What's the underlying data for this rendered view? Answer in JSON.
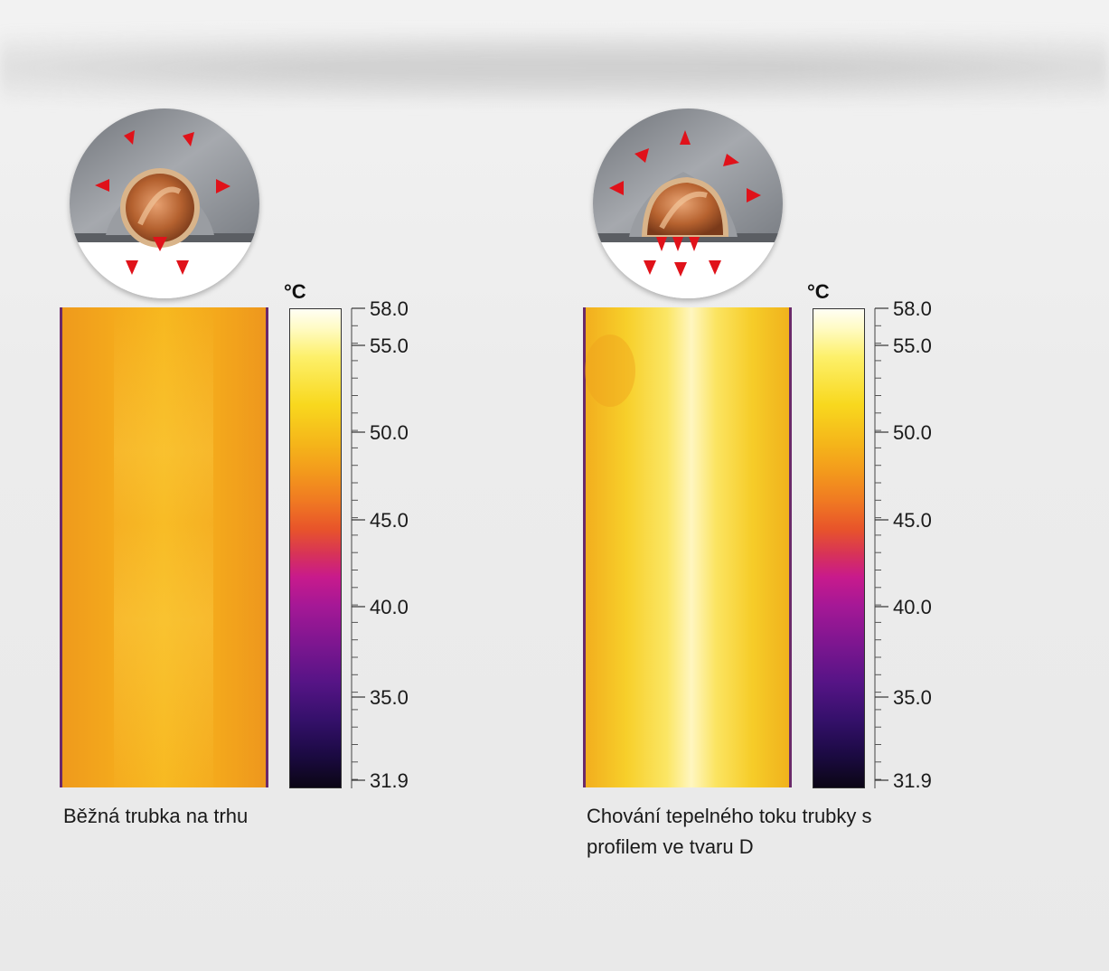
{
  "unit": "°C",
  "scale_labels": [
    "58.0",
    "55.0",
    "50.0",
    "45.0",
    "40.0",
    "35.0",
    "31.9"
  ],
  "panels": [
    {
      "caption": "Běžná trubka na trhu",
      "thermal_profile": "uniform-orange"
    },
    {
      "caption": "Chování tepelného toku trubky s profilem ve tvaru D",
      "thermal_profile": "bright-center"
    }
  ],
  "colors": {
    "arrow": "#e0121a",
    "copper": "#c8703a",
    "metal": "#8e9298"
  }
}
